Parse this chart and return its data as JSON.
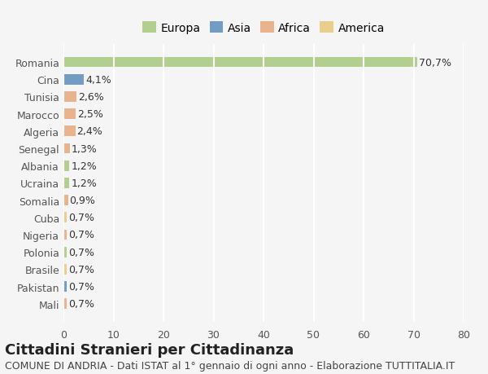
{
  "categories": [
    "Romania",
    "Cina",
    "Tunisia",
    "Marocco",
    "Algeria",
    "Senegal",
    "Albania",
    "Ucraina",
    "Somalia",
    "Cuba",
    "Nigeria",
    "Polonia",
    "Brasile",
    "Pakistan",
    "Mali"
  ],
  "values": [
    70.7,
    4.1,
    2.6,
    2.5,
    2.4,
    1.3,
    1.2,
    1.2,
    0.9,
    0.7,
    0.7,
    0.7,
    0.7,
    0.7,
    0.7
  ],
  "labels": [
    "70,7%",
    "4,1%",
    "2,6%",
    "2,5%",
    "2,4%",
    "1,3%",
    "1,2%",
    "1,2%",
    "0,9%",
    "0,7%",
    "0,7%",
    "0,7%",
    "0,7%",
    "0,7%",
    "0,7%"
  ],
  "continent": [
    "Europa",
    "Asia",
    "Africa",
    "Africa",
    "Africa",
    "Africa",
    "Europa",
    "Europa",
    "Africa",
    "America",
    "Africa",
    "Europa",
    "America",
    "Asia",
    "Africa"
  ],
  "colors": {
    "Europa": "#a8c97f",
    "Asia": "#5b8db8",
    "Africa": "#e8a87c",
    "America": "#e8c87c"
  },
  "legend_colors": {
    "Europa": "#a8c97f",
    "Asia": "#5b8db8",
    "Africa": "#e8a87c",
    "America": "#e8c87c"
  },
  "xlim": [
    0,
    80
  ],
  "xticks": [
    0,
    10,
    20,
    30,
    40,
    50,
    60,
    70,
    80
  ],
  "title": "Cittadini Stranieri per Cittadinanza",
  "subtitle": "COMUNE DI ANDRIA - Dati ISTAT al 1° gennaio di ogni anno - Elaborazione TUTTITALIA.IT",
  "background_color": "#f5f5f5",
  "grid_color": "#ffffff",
  "bar_height": 0.6,
  "title_fontsize": 13,
  "subtitle_fontsize": 9,
  "label_fontsize": 9,
  "tick_fontsize": 9
}
